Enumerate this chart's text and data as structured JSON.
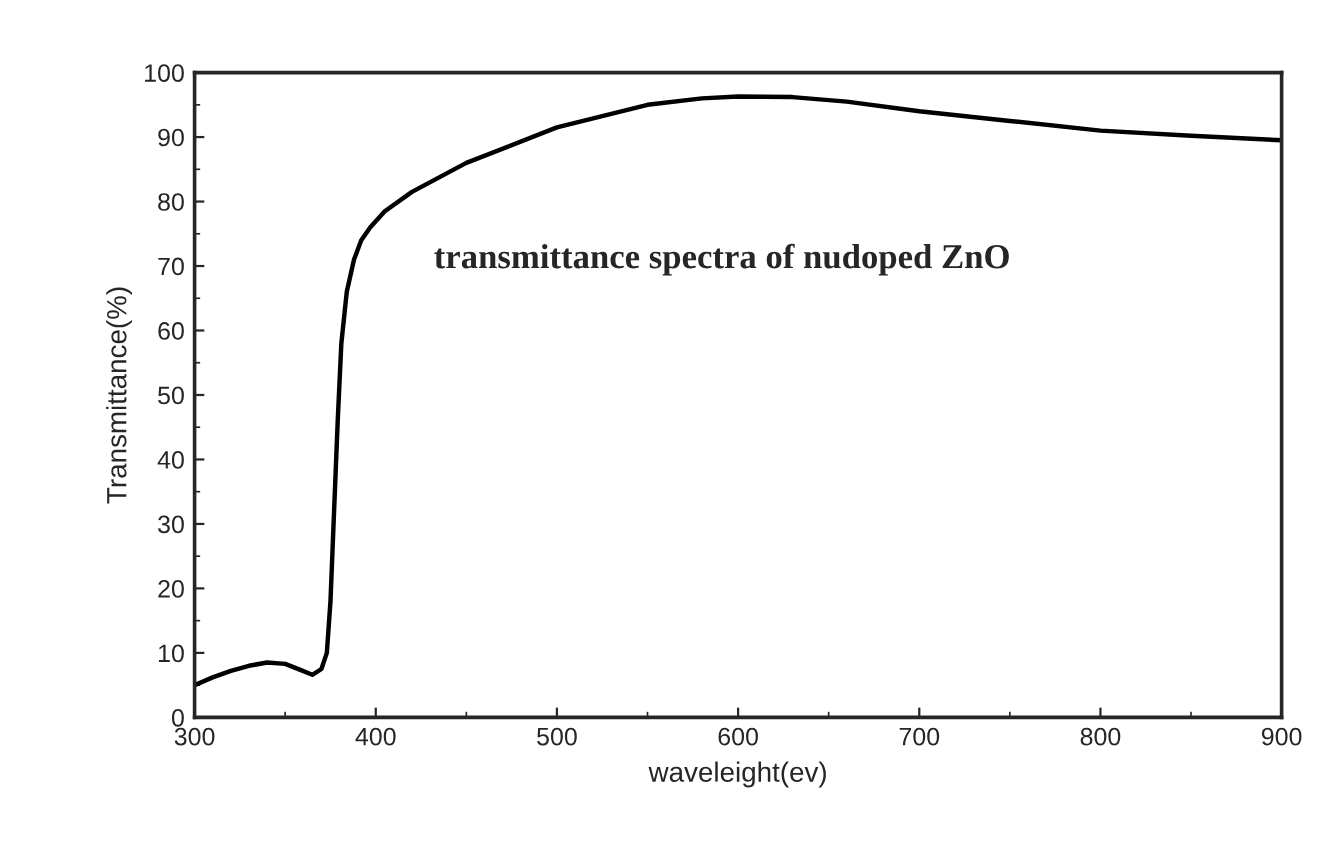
{
  "chart_data": {
    "type": "line",
    "xlabel": "waveleight(ev)",
    "ylabel": "Transmittance(%)",
    "annotations": [
      "transmittance spectra of nudoped ZnO"
    ],
    "x": [
      300,
      310,
      320,
      330,
      340,
      350,
      358,
      365,
      370,
      373,
      375,
      377,
      379,
      381,
      384,
      388,
      392,
      397,
      405,
      420,
      450,
      500,
      550,
      580,
      600,
      630,
      660,
      700,
      750,
      800,
      850,
      900
    ],
    "series": [
      {
        "color": "#000000",
        "values": [
          5,
          6.2,
          7.2,
          8,
          8.5,
          8.3,
          7.4,
          6.6,
          7.5,
          10,
          18,
          32,
          46,
          58,
          66,
          71,
          74,
          76,
          78.5,
          81.5,
          86,
          91.5,
          95,
          96,
          96.3,
          96.2,
          95.5,
          94,
          92.5,
          91,
          90.2,
          89.5
        ]
      }
    ],
    "xlim": [
      300,
      900
    ],
    "xticks": [
      300,
      400,
      500,
      600,
      700,
      800,
      900
    ],
    "ylim": [
      0,
      100
    ],
    "yticks": [
      0,
      10,
      20,
      30,
      40,
      50,
      60,
      70,
      80,
      90,
      100
    ],
    "grid": false,
    "legend": false,
    "marker": "none",
    "line_style": "solid"
  }
}
